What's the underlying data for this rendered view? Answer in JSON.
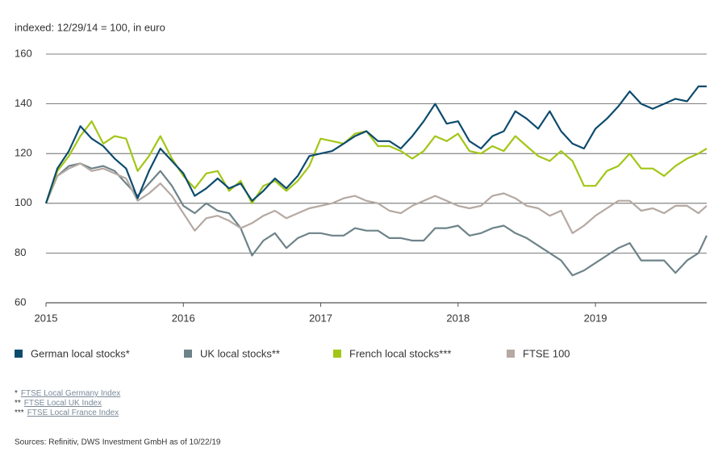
{
  "chart_data": {
    "type": "line",
    "subtitle": "indexed: 12/29/14 = 100, in euro",
    "x": [
      2015,
      2015.083,
      2015.167,
      2015.25,
      2015.333,
      2015.417,
      2015.5,
      2015.583,
      2015.667,
      2015.75,
      2015.833,
      2015.917,
      2016,
      2016.083,
      2016.167,
      2016.25,
      2016.333,
      2016.417,
      2016.5,
      2016.583,
      2016.667,
      2016.75,
      2016.833,
      2016.917,
      2017,
      2017.083,
      2017.167,
      2017.25,
      2017.333,
      2017.417,
      2017.5,
      2017.583,
      2017.667,
      2017.75,
      2017.833,
      2017.917,
      2018,
      2018.083,
      2018.167,
      2018.25,
      2018.333,
      2018.417,
      2018.5,
      2018.583,
      2018.667,
      2018.75,
      2018.833,
      2018.917,
      2019,
      2019.083,
      2019.167,
      2019.25,
      2019.333,
      2019.417,
      2019.5,
      2019.583,
      2019.667,
      2019.75,
      2019.81
    ],
    "series": [
      {
        "name": "German local stocks*",
        "color": "#0d4b6e",
        "values": [
          100,
          114,
          121,
          131,
          126,
          123,
          118,
          114,
          102,
          113,
          122,
          117,
          112,
          103,
          106,
          110,
          106,
          108,
          101,
          105,
          110,
          106,
          111,
          119,
          120,
          121,
          124,
          127,
          129,
          125,
          125,
          122,
          127,
          133,
          140,
          132,
          133,
          125,
          122,
          127,
          129,
          137,
          134,
          130,
          137,
          129,
          124,
          122,
          130,
          134,
          139,
          145,
          140,
          138,
          140,
          142,
          141,
          147,
          147
        ]
      },
      {
        "name": "UK local stocks**",
        "color": "#6e8389",
        "values": [
          100,
          111,
          115,
          116,
          114,
          115,
          113,
          108,
          103,
          108,
          113,
          107,
          99,
          96,
          100,
          97,
          96,
          90,
          79,
          85,
          88,
          82,
          86,
          88,
          88,
          87,
          87,
          90,
          89,
          89,
          86,
          86,
          85,
          85,
          90,
          90,
          91,
          87,
          88,
          90,
          91,
          88,
          86,
          83,
          80,
          77,
          71,
          73,
          76,
          79,
          82,
          84,
          77,
          77,
          77,
          72,
          77,
          80,
          87
        ]
      },
      {
        "name": "French local stocks***",
        "color": "#a2c617",
        "values": [
          100,
          113,
          119,
          127,
          133,
          124,
          127,
          126,
          113,
          119,
          127,
          118,
          111,
          106,
          112,
          113,
          105,
          109,
          100,
          107,
          109,
          105,
          109,
          115,
          126,
          125,
          124,
          128,
          129,
          123,
          123,
          121,
          118,
          121,
          127,
          125,
          128,
          121,
          120,
          123,
          121,
          127,
          123,
          119,
          117,
          121,
          117,
          107,
          107,
          113,
          115,
          120,
          114,
          114,
          111,
          115,
          118,
          120,
          122
        ]
      },
      {
        "name": "FTSE 100",
        "color": "#b5a9a2",
        "values": [
          100,
          111,
          114,
          116,
          113,
          114,
          112,
          110,
          101,
          104,
          108,
          103,
          96,
          89,
          94,
          95,
          93,
          90,
          92,
          95,
          97,
          94,
          96,
          98,
          99,
          100,
          102,
          103,
          101,
          100,
          97,
          96,
          99,
          101,
          103,
          101,
          99,
          98,
          99,
          103,
          104,
          102,
          99,
          98,
          95,
          97,
          88,
          91,
          95,
          98,
          101,
          101,
          97,
          98,
          96,
          99,
          99,
          96,
          99
        ]
      }
    ],
    "xlim": [
      2015,
      2019.81
    ],
    "xticks": [
      2015,
      2016,
      2017,
      2018,
      2019
    ],
    "ylim": [
      60,
      160
    ],
    "yticks": [
      60,
      80,
      100,
      120,
      140,
      160
    ],
    "grid": true,
    "footnotes": [
      {
        "mark": "*",
        "text": "FTSE Local Germany Index"
      },
      {
        "mark": "**",
        "text": "FTSE Local UK Index"
      },
      {
        "mark": "***",
        "text": "FTSE Local France Index"
      }
    ],
    "source": "Sources: Refinitiv, DWS Investment GmbH as of 10/22/19"
  }
}
